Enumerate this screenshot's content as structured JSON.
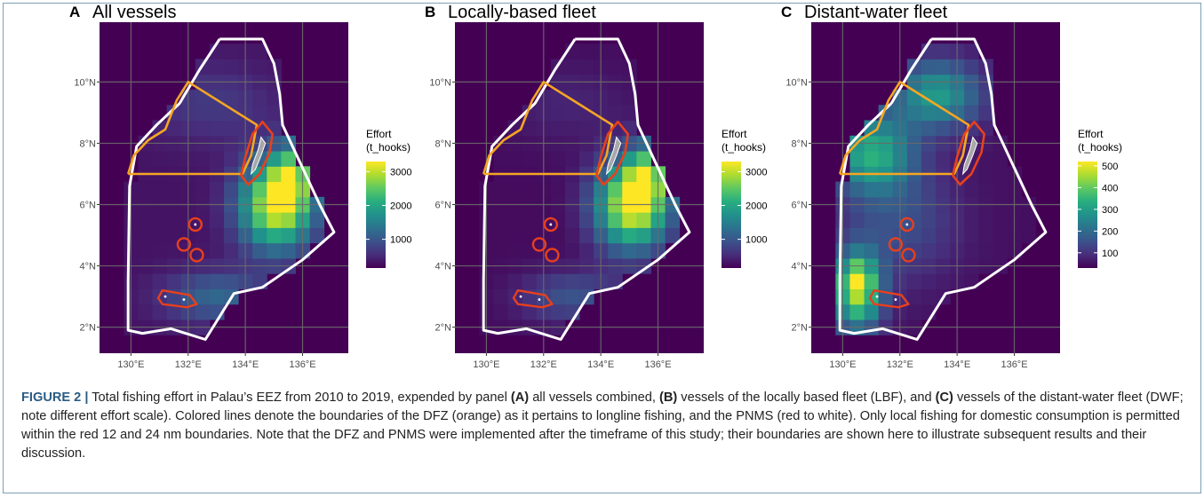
{
  "figure": {
    "panels": [
      {
        "letter": "A",
        "title": "All vessels",
        "legend": {
          "title_line1": "Effort",
          "title_line2": "(t_hooks)",
          "ticks": [
            "3000",
            "2000",
            "1000"
          ],
          "tick_values": [
            3000,
            2000,
            1000
          ],
          "scale_max": 3300
        },
        "fleet": "all"
      },
      {
        "letter": "B",
        "title": "Locally-based fleet",
        "legend": {
          "title_line1": "Effort",
          "title_line2": "(t_hooks)",
          "ticks": [
            "3000",
            "2000",
            "1000"
          ],
          "tick_values": [
            3000,
            2000,
            1000
          ],
          "scale_max": 3300
        },
        "fleet": "lbf"
      },
      {
        "letter": "C",
        "title": "Distant-water fleet",
        "legend": {
          "title_line1": "Effort",
          "title_line2": "(t_hooks)",
          "ticks": [
            "500",
            "400",
            "300",
            "200",
            "100"
          ],
          "tick_values": [
            500,
            400,
            300,
            200,
            100
          ],
          "scale_max": 520
        },
        "fleet": "dwf"
      }
    ],
    "axes": {
      "lat_ticks": [
        "10°N",
        "8°N",
        "6°N",
        "4°N",
        "2°N"
      ],
      "lon_ticks": [
        "130°E",
        "132°E",
        "134°E",
        "136°E"
      ]
    },
    "colors": {
      "background": "#440154",
      "eez_boundary": "#ffffff",
      "dfz_boundary": "#f5a623",
      "pnms_boundary": "#e8401c",
      "land": "#a8a8a8",
      "grid": "#6b6b6b"
    }
  },
  "caption": {
    "label": "FIGURE 2 |",
    "p1": " Total fishing effort in Palau’s EEZ from 2010 to 2019, expended by panel ",
    "a": "(A)",
    "p2": " all vessels combined, ",
    "b": "(B)",
    "p3": " vessels of the locally based fleet (LBF), and ",
    "c": "(C)",
    "p4": " vessels of the distant-water fleet (DWF; note different effort scale). Colored lines denote the boundaries of the DFZ (orange) as it pertains to longline fishing, and the PNMS (red to white). Only local fishing for domestic consumption is permitted within the red 12 and 24 nm boundaries. Note that the DFZ and PNMS were implemented after the timeframe of this study; their boundaries are shown here to illustrate subsequent results and their discussion."
  }
}
